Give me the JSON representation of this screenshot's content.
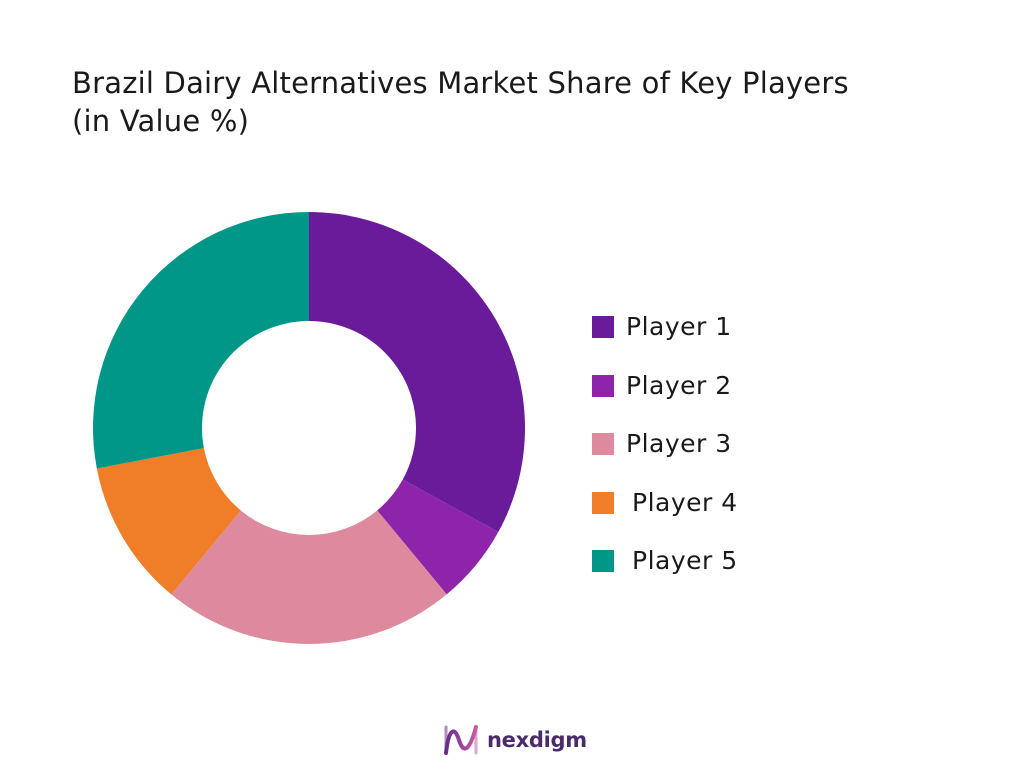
{
  "title": {
    "line1": "Brazil Dairy Alternatives Market Share of Key Players",
    "line2": "(in Value %)"
  },
  "chart_data": {
    "type": "pie",
    "variant": "donut",
    "categories": [
      "Player 1",
      "Player 2",
      "Player 3",
      "Player 4",
      "Player 5"
    ],
    "values": [
      33,
      6,
      22,
      11,
      28
    ],
    "colors": [
      "#6a1b9a",
      "#8e24aa",
      "#de8a9e",
      "#f07d28",
      "#009688"
    ],
    "legend_position": "right"
  },
  "legend": {
    "items": [
      {
        "label": "Player 1",
        "color": "#6a1b9a"
      },
      {
        "label": "Player 2",
        "color": "#8e24aa"
      },
      {
        "label": "Player 3",
        "color": "#de8a9e"
      },
      {
        "label": "Player 4",
        "color": "#f07d28"
      },
      {
        "label": "Player 5",
        "color": "#009688"
      }
    ]
  },
  "brand": {
    "name": "nexdigm",
    "icon": "nexdigm-logo-icon"
  }
}
